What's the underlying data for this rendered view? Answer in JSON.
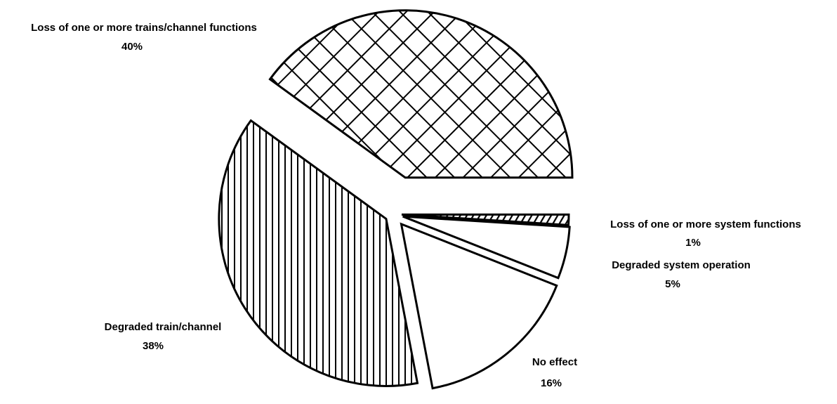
{
  "chart_data": {
    "type": "pie",
    "categories": [
      "Loss of one or more system functions",
      "Degraded system operation",
      "No effect",
      "Degraded train/channel",
      "Loss of one or more trains/channel functions"
    ],
    "values": [
      1,
      5,
      16,
      38,
      40
    ],
    "value_labels": [
      "1%",
      "5%",
      "16%",
      "38%",
      "40%"
    ],
    "patterns": [
      "diagonal",
      "none",
      "none",
      "vertical",
      "crosshatch"
    ],
    "color": "#000000"
  }
}
